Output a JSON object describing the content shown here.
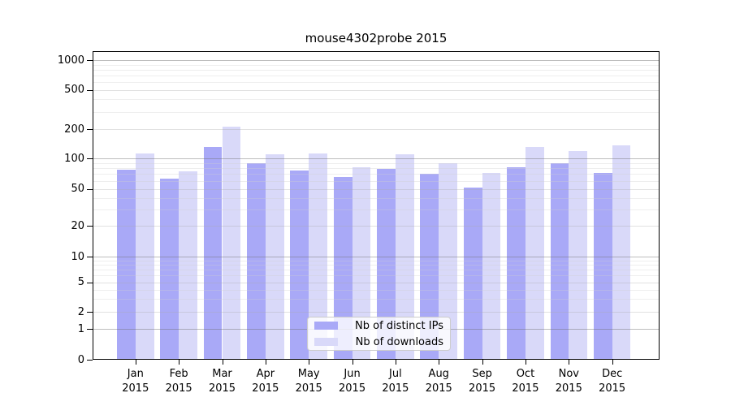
{
  "chart_data": {
    "type": "bar",
    "title": "mouse4302probe 2015",
    "categories": [
      "Jan 2015",
      "Feb 2015",
      "Mar 2015",
      "Apr 2015",
      "May 2015",
      "Jun 2015",
      "Jul 2015",
      "Aug 2015",
      "Sep 2015",
      "Oct 2015",
      "Nov 2015",
      "Dec 2015"
    ],
    "series": [
      {
        "name": "Nb of distinct IPs",
        "color": "#a9a9f7",
        "values": [
          78,
          63,
          130,
          90,
          76,
          65,
          79,
          70,
          52,
          82,
          90,
          72
        ]
      },
      {
        "name": "Nb of downloads",
        "color": "#d9d9f9",
        "values": [
          112,
          75,
          210,
          110,
          112,
          82,
          111,
          90,
          72,
          132,
          118,
          135
        ]
      }
    ],
    "yscale": "symlog",
    "yticks": [
      0,
      1,
      2,
      5,
      10,
      20,
      50,
      100,
      200,
      500,
      1000
    ],
    "yminorticks": [
      3,
      4,
      6,
      7,
      8,
      9,
      30,
      40,
      60,
      70,
      80,
      90,
      300,
      400,
      600,
      700,
      800,
      900
    ],
    "ylim": [
      0,
      1250
    ],
    "xlabel": "",
    "ylabel": "",
    "grid": true,
    "legend_position": "lower center",
    "colors": {
      "background": "#ffffff",
      "axis": "#000000",
      "grid_decade": "#b0b0b0",
      "grid_major": "#dddddd",
      "grid_minor": "#eeeeee"
    }
  }
}
